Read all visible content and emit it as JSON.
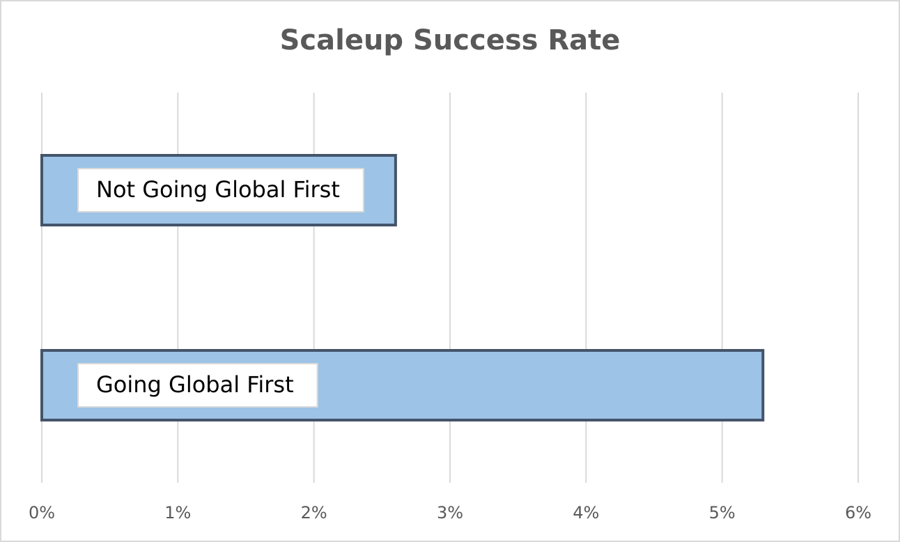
{
  "chart_data": {
    "type": "bar",
    "orientation": "horizontal",
    "title": "Scaleup Success Rate",
    "categories": [
      "Not Going Global First",
      "Going Global First"
    ],
    "values": [
      2.6,
      5.3
    ],
    "color": "#9dc3e6",
    "edge_color": "#44546a",
    "xlim": [
      0,
      6
    ],
    "xticks": [
      {
        "value": 0,
        "label": "0%"
      },
      {
        "value": 1,
        "label": "1%"
      },
      {
        "value": 2,
        "label": "2%"
      },
      {
        "value": 3,
        "label": "3%"
      },
      {
        "value": 4,
        "label": "4%"
      },
      {
        "value": 5,
        "label": "5%"
      },
      {
        "value": 6,
        "label": "6%"
      }
    ],
    "grid": true
  }
}
